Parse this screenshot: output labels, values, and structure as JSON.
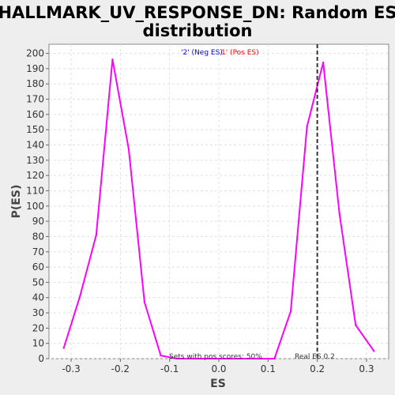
{
  "chart_data": {
    "type": "line",
    "title_line1": "HALLMARK_UV_RESPONSE_DN: Random ES",
    "title_line2": "distribution",
    "xlabel": "ES",
    "ylabel": "P(ES)",
    "xlim": [
      -0.345,
      0.345
    ],
    "ylim": [
      0,
      206
    ],
    "x_ticks": [
      -0.3,
      -0.2,
      -0.1,
      0.0,
      0.1,
      0.2,
      0.3
    ],
    "x_tick_labels": [
      "-0.3",
      "-0.2",
      "-0.1",
      "0.0",
      "0.1",
      "0.2",
      "0.3"
    ],
    "y_ticks": [
      0,
      10,
      20,
      30,
      40,
      50,
      60,
      70,
      80,
      90,
      100,
      110,
      120,
      130,
      140,
      150,
      160,
      170,
      180,
      190,
      200
    ],
    "grid": true,
    "legend": {
      "neg_label": "'2' (Neg ES)",
      "pos_label": "1' (Pos ES)",
      "neg_color": "#0000ff",
      "pos_color": "#ff0000",
      "placement": "top-center"
    },
    "series": [
      {
        "color": "#ff00ff",
        "x": [
          -0.315,
          -0.282,
          -0.249,
          -0.216,
          -0.183,
          -0.151,
          -0.118,
          -0.085,
          0.113,
          0.146,
          0.179,
          0.212,
          0.245,
          0.278,
          0.315
        ],
        "y": [
          7,
          41,
          81,
          196,
          137,
          37,
          2,
          0,
          0,
          31,
          152,
          194,
          95,
          22,
          5
        ]
      }
    ],
    "real_es": {
      "value": 0.2,
      "label": "Real ES 0.2",
      "color": "#333333"
    },
    "annotation": "Sets with pos scores: 50%",
    "colors": {
      "background": "#eeeeee",
      "plot_background": "#ffffff",
      "grid": "#e0e0e0"
    }
  }
}
